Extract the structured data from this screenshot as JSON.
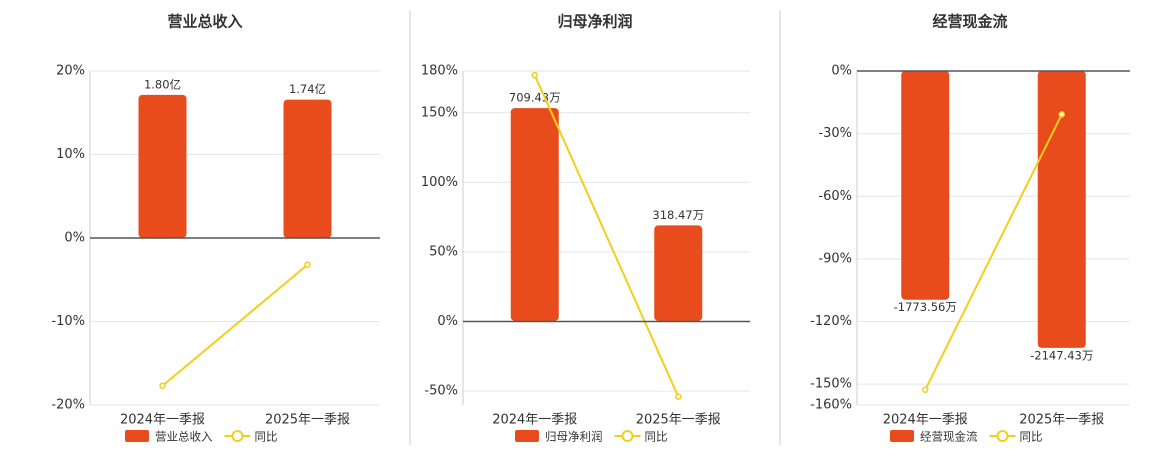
{
  "chart_data": [
    {
      "type": "bar",
      "title": "营业总收入",
      "categories": [
        "2024年一季报",
        "2025年一季报"
      ],
      "series": [
        {
          "name": "营业总收入",
          "color": "#e84c1c",
          "values": [
            1.8,
            1.74
          ],
          "value_labels": [
            "1.80亿",
            "1.74亿"
          ],
          "axis": "y2"
        },
        {
          "name": "同比",
          "color": "#f2cf1a",
          "values": [
            -17.7,
            -3.2
          ],
          "type": "line"
        }
      ],
      "ylim": [
        -20,
        20
      ],
      "yticks": [
        {
          "value": -20,
          "label": "-20%"
        },
        {
          "value": -10,
          "label": "-10%"
        },
        {
          "value": 0,
          "label": "0%"
        },
        {
          "value": 10,
          "label": "10%"
        },
        {
          "value": 20,
          "label": "20%"
        }
      ],
      "y2lim": [
        -2.1,
        2.1
      ],
      "grid": true
    },
    {
      "type": "bar",
      "title": "归母净利润",
      "categories": [
        "2024年一季报",
        "2025年一季报"
      ],
      "series": [
        {
          "name": "归母净利润",
          "color": "#e84c1c",
          "values": [
            709.43,
            318.47
          ],
          "value_labels": [
            "709.43万",
            "318.47万"
          ],
          "axis": "y2"
        },
        {
          "name": "同比",
          "color": "#f2cf1a",
          "values": [
            177,
            -54
          ],
          "type": "line"
        }
      ],
      "ylim": [
        -60,
        180
      ],
      "yticks": [
        {
          "value": -50,
          "label": "-50%"
        },
        {
          "value": 0,
          "label": "0%"
        },
        {
          "value": 50,
          "label": "50%"
        },
        {
          "value": 100,
          "label": "100%"
        },
        {
          "value": 150,
          "label": "150%"
        },
        {
          "value": 180,
          "label": "180%"
        }
      ],
      "y2lim": [
        -280,
        833
      ],
      "grid": true
    },
    {
      "type": "bar",
      "title": "经营现金流",
      "categories": [
        "2024年一季报",
        "2025年一季报"
      ],
      "series": [
        {
          "name": "经营现金流",
          "color": "#e84c1c",
          "values": [
            -1773.56,
            -2147.43
          ],
          "value_labels": [
            "-1773.56万",
            "-2147.43万"
          ],
          "axis": "y2"
        },
        {
          "name": "同比",
          "color": "#f2cf1a",
          "values": [
            -152.7,
            -20.8
          ],
          "type": "line"
        }
      ],
      "ylim": [
        -160,
        0
      ],
      "yticks": [
        {
          "value": -160,
          "label": "-160%"
        },
        {
          "value": -150,
          "label": "-150%"
        },
        {
          "value": -120,
          "label": "-120%"
        },
        {
          "value": -90,
          "label": "-90%"
        },
        {
          "value": -60,
          "label": "-60%"
        },
        {
          "value": -30,
          "label": "-30%"
        },
        {
          "value": 0,
          "label": "0%"
        }
      ],
      "y2lim": [
        -2590,
        0
      ],
      "grid": true
    }
  ]
}
